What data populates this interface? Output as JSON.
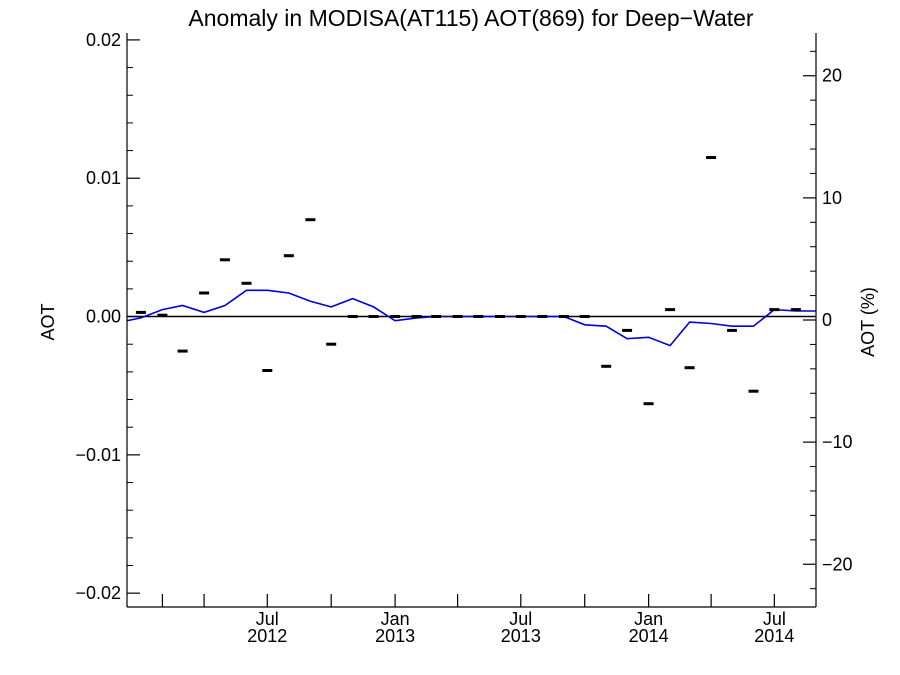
{
  "chart_data": {
    "type": "line",
    "title": "Anomaly in MODISA(AT115) AOT(869) for Deep−Water",
    "xlabel": "",
    "ylabel": "AOT",
    "ylabel_right": "AOT (%)",
    "ylim": [
      -0.021,
      0.0205
    ],
    "ylim_right": [
      -23.5,
      23.5
    ],
    "xlim": [
      "2011-12-12",
      "2014-08-30"
    ],
    "grid": false,
    "legend": "none",
    "y_ticks": [
      {
        "value": -0.02,
        "label": "−0.02"
      },
      {
        "value": -0.01,
        "label": "−0.01"
      },
      {
        "value": 0.0,
        "label": "0.00"
      },
      {
        "value": 0.01,
        "label": "0.01"
      },
      {
        "value": 0.02,
        "label": "0.02"
      }
    ],
    "y_minor_step": 0.002,
    "y_right_ticks": [
      {
        "value": -20,
        "label": "−20"
      },
      {
        "value": -10,
        "label": "−10"
      },
      {
        "value": 0,
        "label": "0"
      },
      {
        "value": 10,
        "label": "10"
      },
      {
        "value": 20,
        "label": "20"
      }
    ],
    "y_right_minor_step": 2,
    "x_ticks": [
      {
        "date": "2012-02-01",
        "month": "",
        "year": ""
      },
      {
        "date": "2012-04-01",
        "month": "",
        "year": ""
      },
      {
        "date": "2012-07-01",
        "month": "Jul",
        "year": "2012"
      },
      {
        "date": "2012-10-01",
        "month": "",
        "year": ""
      },
      {
        "date": "2013-01-01",
        "month": "Jan",
        "year": "2013"
      },
      {
        "date": "2013-04-01",
        "month": "",
        "year": ""
      },
      {
        "date": "2013-07-01",
        "month": "Jul",
        "year": "2013"
      },
      {
        "date": "2013-10-01",
        "month": "",
        "year": ""
      },
      {
        "date": "2014-01-01",
        "month": "Jan",
        "year": "2014"
      },
      {
        "date": "2014-04-01",
        "month": "",
        "year": ""
      },
      {
        "date": "2014-07-01",
        "month": "Jul",
        "year": "2014"
      }
    ],
    "colors": {
      "line": "#0000dd",
      "points": "#000000",
      "zero_line": "#000000"
    },
    "series": [
      {
        "kind": "line",
        "x": [
          "2011-12-12",
          "2012-01-01",
          "2012-02-01",
          "2012-03-01",
          "2012-04-01",
          "2012-05-01",
          "2012-06-01",
          "2012-07-01",
          "2012-08-01",
          "2012-09-01",
          "2012-10-01",
          "2012-11-01",
          "2012-12-01",
          "2013-01-01",
          "2013-02-01",
          "2013-03-01",
          "2013-04-01",
          "2013-05-01",
          "2013-06-01",
          "2013-07-01",
          "2013-08-01",
          "2013-09-01",
          "2013-10-01",
          "2013-11-01",
          "2013-12-01",
          "2014-01-01",
          "2014-02-01",
          "2014-03-01",
          "2014-04-01",
          "2014-05-01",
          "2014-06-01",
          "2014-07-01",
          "2014-08-01",
          "2014-08-30"
        ],
        "values": [
          -0.0003,
          -0.0001,
          0.0005,
          0.0008,
          0.0003,
          0.0008,
          0.0019,
          0.0019,
          0.0017,
          0.0011,
          0.0007,
          0.0013,
          0.0007,
          -0.0003,
          -0.0001,
          0.0,
          0.0,
          0.0,
          0.0,
          0.0,
          0.0,
          0.0,
          -0.0006,
          -0.0007,
          -0.0016,
          -0.0015,
          -0.0021,
          -0.0004,
          -0.0005,
          -0.0007,
          -0.0007,
          0.0005,
          0.0004,
          0.0004
        ]
      },
      {
        "kind": "scatter",
        "x": [
          "2012-01-01",
          "2012-02-01",
          "2012-03-01",
          "2012-04-01",
          "2012-05-01",
          "2012-06-01",
          "2012-07-01",
          "2012-08-01",
          "2012-09-01",
          "2012-10-01",
          "2012-11-01",
          "2012-12-01",
          "2013-01-01",
          "2013-02-01",
          "2013-03-01",
          "2013-04-01",
          "2013-05-01",
          "2013-06-01",
          "2013-07-01",
          "2013-08-01",
          "2013-09-01",
          "2013-10-01",
          "2013-11-01",
          "2013-12-01",
          "2014-01-01",
          "2014-02-01",
          "2014-03-01",
          "2014-04-01",
          "2014-05-01",
          "2014-06-01",
          "2014-07-01",
          "2014-08-01"
        ],
        "values": [
          0.0003,
          0.0001,
          -0.0025,
          0.0017,
          0.0041,
          0.0024,
          -0.0039,
          0.0044,
          0.007,
          -0.002,
          0.0,
          0.0,
          0.0,
          0.0,
          0.0,
          0.0,
          0.0,
          0.0,
          0.0,
          0.0,
          0.0,
          0.0,
          -0.0036,
          -0.001,
          -0.0063,
          0.0005,
          -0.0037,
          0.0115,
          -0.001,
          -0.0054,
          0.0005,
          0.0005
        ]
      }
    ]
  }
}
